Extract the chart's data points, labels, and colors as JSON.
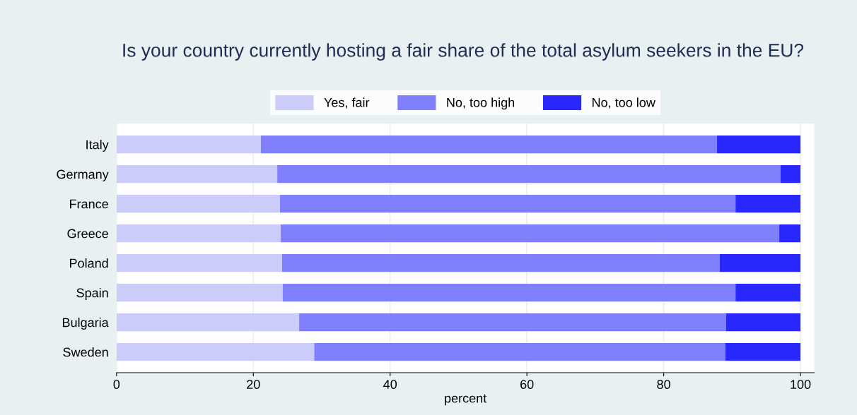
{
  "chart_data": {
    "type": "bar",
    "orientation": "horizontal",
    "stacked": true,
    "title": "Is your country currently hosting a fair share of the total asylum seekers in the EU?",
    "xlabel": "percent",
    "categories": [
      "Italy",
      "Germany",
      "France",
      "Greece",
      "Poland",
      "Spain",
      "Bulgaria",
      "Sweden"
    ],
    "series": [
      {
        "name": "Yes, fair",
        "color": "#ccccfa",
        "values": [
          21.1,
          23.5,
          23.9,
          24.0,
          24.2,
          24.3,
          26.7,
          28.9
        ]
      },
      {
        "name": "No, too high",
        "color": "#8080fc",
        "values": [
          66.7,
          73.6,
          66.6,
          72.9,
          64.0,
          66.2,
          62.4,
          60.1
        ]
      },
      {
        "name": "No, too low",
        "color": "#2828fe",
        "values": [
          12.2,
          2.9,
          9.5,
          3.1,
          11.8,
          9.5,
          10.9,
          11.0
        ]
      }
    ],
    "xlim": [
      0,
      102
    ],
    "xticks": [
      0,
      20,
      40,
      60,
      80,
      100
    ],
    "grid": "x",
    "legend": "top"
  }
}
